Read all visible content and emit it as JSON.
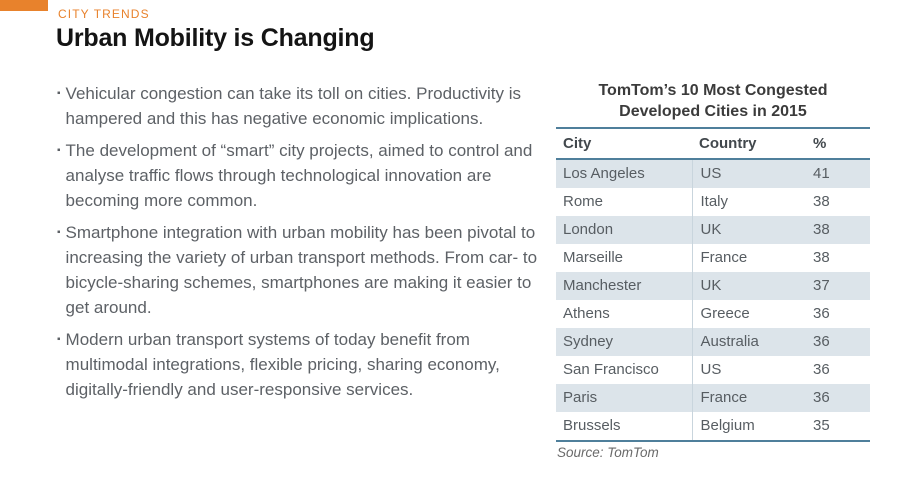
{
  "slide": {
    "eyebrow": "CITY TRENDS",
    "title": "Urban Mobility is Changing"
  },
  "bullets": [
    "Vehicular congestion can take its toll on cities. Productivity is hampered and this has negative economic implications.",
    "The development of “smart” city projects, aimed to control and analyse traffic flows through technological innovation are becoming more common.",
    "Smartphone integration with urban mobility has been pivotal to increasing the variety of urban transport methods. From car- to bicycle-sharing schemes, smartphones are making it easier to get around.",
    "Modern urban transport systems of today benefit from multimodal integrations, flexible pricing, sharing economy, digitally-friendly and user-responsive services."
  ],
  "table": {
    "title_lines": [
      "TomTom’s 10 Most Congested",
      "Developed Cities in 2015"
    ],
    "headers": [
      "City",
      "Country",
      "%"
    ],
    "rows": [
      [
        "Los Angeles",
        "US",
        "41"
      ],
      [
        "Rome",
        "Italy",
        "38"
      ],
      [
        "London",
        "UK",
        "38"
      ],
      [
        "Marseille",
        "France",
        "38"
      ],
      [
        "Manchester",
        "UK",
        "37"
      ],
      [
        "Athens",
        "Greece",
        "36"
      ],
      [
        "Sydney",
        "Australia",
        "36"
      ],
      [
        "San Francisco",
        "US",
        "36"
      ],
      [
        "Paris",
        "France",
        "36"
      ],
      [
        "Brussels",
        "Belgium",
        "35"
      ]
    ],
    "source": "Source: TomTom"
  },
  "chart_data": {
    "type": "table",
    "title": "TomTom’s 10 Most Congested Developed Cities in 2015",
    "columns": [
      "City",
      "Country",
      "%"
    ],
    "rows": [
      [
        "Los Angeles",
        "US",
        41
      ],
      [
        "Rome",
        "Italy",
        38
      ],
      [
        "London",
        "UK",
        38
      ],
      [
        "Marseille",
        "France",
        38
      ],
      [
        "Manchester",
        "UK",
        37
      ],
      [
        "Athens",
        "Greece",
        36
      ],
      [
        "Sydney",
        "Australia",
        36
      ],
      [
        "San Francisco",
        "US",
        36
      ],
      [
        "Paris",
        "France",
        36
      ],
      [
        "Brussels",
        "Belgium",
        35
      ]
    ],
    "source": "Source: TomTom"
  },
  "colors": {
    "accent_orange": "#E8822C",
    "table_line_blue": "#4F7F9B",
    "band_fill": "#DCE4EA",
    "body_text": "#5D6166"
  }
}
